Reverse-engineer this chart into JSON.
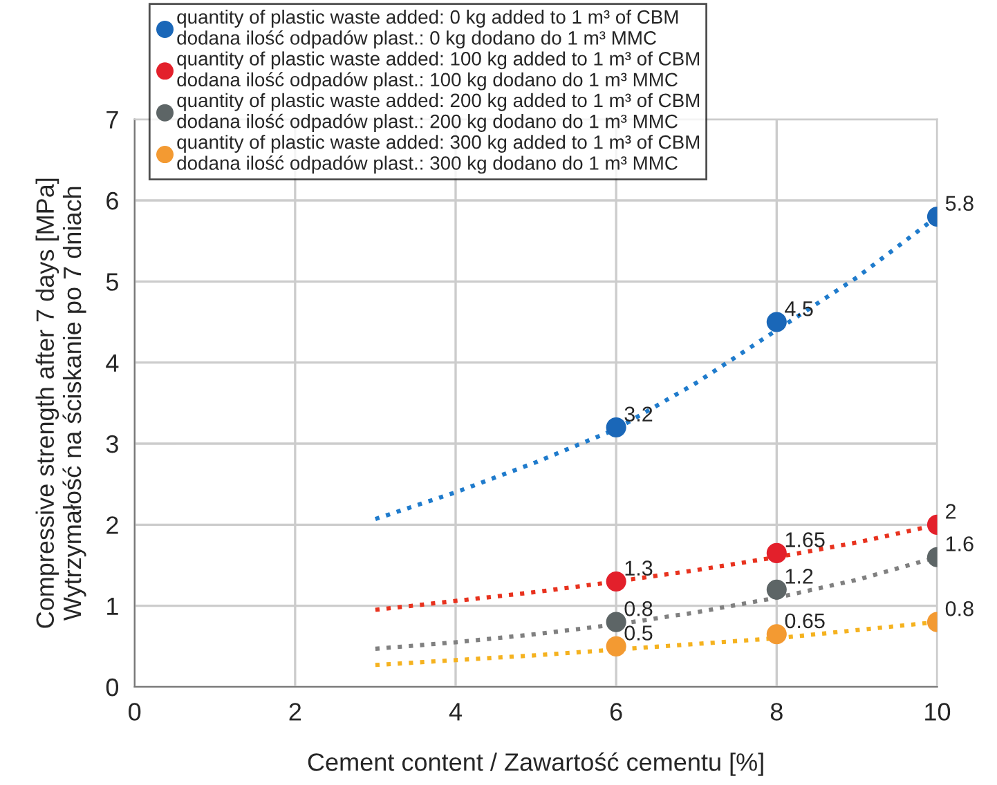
{
  "chart_data": {
    "type": "scatter",
    "xlabel": "Cement content / Zawartość cementu [%]",
    "ylabel": "Compressive strength after 7 days [MPa]\nWytrzymałość na ściskanie po 7 dniach",
    "xlim": [
      0,
      10
    ],
    "ylim": [
      0,
      7
    ],
    "xticks": [
      0,
      2,
      4,
      6,
      8,
      10
    ],
    "yticks": [
      0,
      1,
      2,
      3,
      4,
      5,
      6,
      7
    ],
    "grid": true,
    "legend": "top",
    "series": [
      {
        "name": "quantity of plastic waste added: 0 kg added to 1 m³ of CBM\ndodana ilość odpadów plast.: 0 kg dodano do 1 m³ MMC",
        "color": "#1a67b8",
        "marker": "circle",
        "x": [
          6,
          8,
          10
        ],
        "values": [
          3.2,
          4.5,
          5.8
        ],
        "value_labels": [
          "3.2",
          "4.5",
          "5.8"
        ]
      },
      {
        "name": "quantity of plastic waste added: 100 kg added to 1 m³ of CBM\ndodana ilość odpadów plast.: 100 kg dodano do 1 m³ MMC",
        "color": "#e3202b",
        "marker": "circle",
        "x": [
          6,
          8,
          10
        ],
        "values": [
          1.3,
          1.65,
          2
        ],
        "value_labels": [
          "1.3",
          "1.65",
          "2"
        ]
      },
      {
        "name": "quantity of plastic waste added: 200 kg added to 1 m³ of CBM\ndodana ilość odpadów plast.: 200 kg dodano do 1 m³ MMC",
        "color": "#5d6566",
        "marker": "circle",
        "x": [
          6,
          8,
          10
        ],
        "values": [
          0.8,
          1.2,
          1.6
        ],
        "value_labels": [
          "0.8",
          "1.2",
          "1.6"
        ]
      },
      {
        "name": "quantity of plastic waste added: 300 kg added to 1 m³ of CBM\ndodana ilość odpadów plast.: 300 kg dodano do 1 m³ MMC",
        "color": "#f39a32",
        "marker": "circle",
        "x": [
          6,
          8,
          10
        ],
        "values": [
          0.5,
          0.65,
          0.8
        ],
        "value_labels": [
          "0.5",
          "0.65",
          "0.8"
        ]
      },
      {
        "type": "line",
        "line_style": "dotted",
        "marker": "none",
        "color": "#1f7bcc",
        "x": [
          3,
          4,
          5,
          6,
          7,
          8,
          9,
          10
        ],
        "values": [
          2.07,
          2.4,
          2.77,
          3.18,
          3.75,
          4.4,
          5.05,
          5.8
        ]
      },
      {
        "type": "line",
        "line_style": "dotted",
        "marker": "none",
        "color": "#e8321e",
        "x": [
          3,
          4,
          5,
          6,
          7,
          8,
          9,
          10
        ],
        "values": [
          0.95,
          1.06,
          1.17,
          1.3,
          1.44,
          1.6,
          1.78,
          2.0
        ]
      },
      {
        "type": "line",
        "line_style": "dotted",
        "marker": "none",
        "color": "#808080",
        "x": [
          3,
          4,
          5,
          6,
          7,
          8,
          9,
          10
        ],
        "values": [
          0.47,
          0.55,
          0.65,
          0.77,
          0.92,
          1.1,
          1.32,
          1.6
        ]
      },
      {
        "type": "line",
        "line_style": "dotted",
        "marker": "none",
        "color": "#f5b21f",
        "x": [
          3,
          4,
          5,
          6,
          7,
          8,
          9,
          10
        ],
        "values": [
          0.27,
          0.33,
          0.39,
          0.46,
          0.53,
          0.6,
          0.7,
          0.8
        ]
      }
    ]
  }
}
